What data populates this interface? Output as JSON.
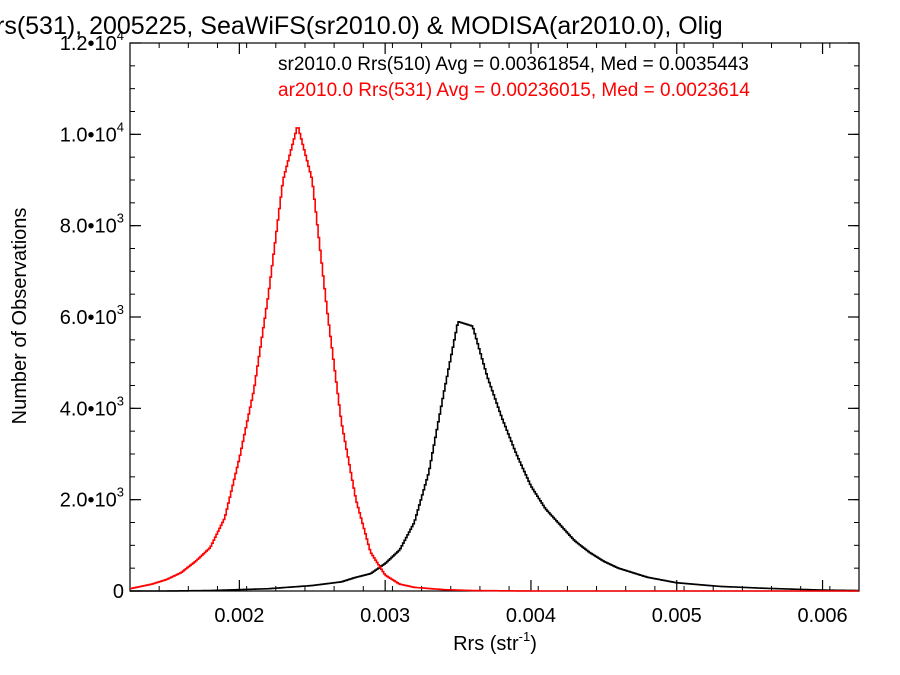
{
  "chart_data": {
    "type": "line",
    "title": "rs(531), 2005225, SeaWiFS(sr2010.0) & MODISA(ar2010.0), Olig",
    "xlabel": "Rrs (str",
    "xlabel_sup": "-1",
    "xlabel_close": ")",
    "ylabel": "Number of Observations",
    "xlim": [
      0.00125,
      0.00625
    ],
    "ylim": [
      0,
      12000
    ],
    "x_ticks": [
      {
        "value": 0.002,
        "label": "0.002"
      },
      {
        "value": 0.003,
        "label": "0.003"
      },
      {
        "value": 0.004,
        "label": "0.004"
      },
      {
        "value": 0.005,
        "label": "0.005"
      },
      {
        "value": 0.006,
        "label": "0.006"
      }
    ],
    "y_ticks": [
      {
        "value": 0,
        "mant": "0",
        "exp": ""
      },
      {
        "value": 2000,
        "mant": "2.0•10",
        "exp": "3"
      },
      {
        "value": 4000,
        "mant": "4.0•10",
        "exp": "3"
      },
      {
        "value": 6000,
        "mant": "6.0•10",
        "exp": "3"
      },
      {
        "value": 8000,
        "mant": "8.0•10",
        "exp": "3"
      },
      {
        "value": 10000,
        "mant": "1.0•10",
        "exp": "4"
      },
      {
        "value": 12000,
        "mant": "1.2•10",
        "exp": "4"
      }
    ],
    "legend_position": "top-right",
    "series": [
      {
        "name": "sr2010.0 Rrs(510) Avg = 0.00361854, Med = 0.0035443",
        "color": "#000000",
        "x": [
          0.0015,
          0.0018,
          0.0022,
          0.0025,
          0.0027,
          0.0028,
          0.0029,
          0.003,
          0.0031,
          0.0032,
          0.0033,
          0.0034,
          0.0035,
          0.0036,
          0.0037,
          0.0038,
          0.0039,
          0.004,
          0.0041,
          0.0042,
          0.0043,
          0.0044,
          0.0045,
          0.0046,
          0.0048,
          0.005,
          0.0053,
          0.0056,
          0.006,
          0.00625
        ],
        "y": [
          0,
          10,
          50,
          120,
          200,
          300,
          380,
          600,
          900,
          1500,
          2600,
          4300,
          5900,
          5800,
          4700,
          3800,
          3000,
          2300,
          1800,
          1450,
          1100,
          850,
          650,
          500,
          300,
          180,
          100,
          60,
          20,
          10
        ]
      },
      {
        "name": "ar2010.0 Rrs(531) Avg = 0.00236015, Med = 0.0023614",
        "color": "#ff0000",
        "x": [
          0.00125,
          0.0014,
          0.0015,
          0.0016,
          0.0017,
          0.0018,
          0.0019,
          0.002,
          0.0021,
          0.0022,
          0.0023,
          0.0024,
          0.0025,
          0.0026,
          0.0027,
          0.0028,
          0.0029,
          0.003,
          0.0031,
          0.0032,
          0.0034,
          0.0036,
          0.004,
          0.00625
        ],
        "y": [
          50,
          150,
          250,
          400,
          650,
          950,
          1600,
          2900,
          4400,
          6500,
          9000,
          10200,
          9000,
          6200,
          3700,
          2000,
          850,
          350,
          150,
          80,
          30,
          10,
          0,
          0
        ]
      }
    ]
  }
}
